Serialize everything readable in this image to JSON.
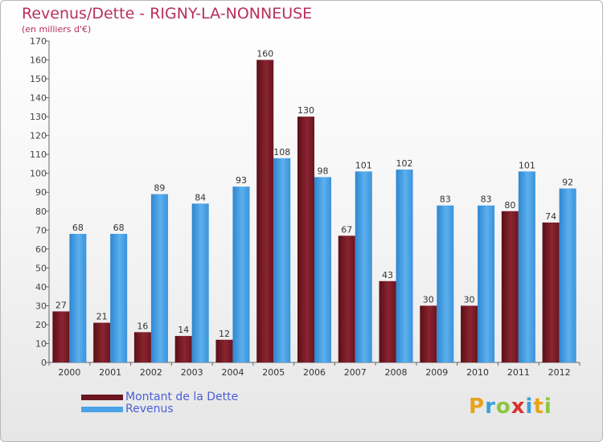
{
  "title": "Revenus/Dette - RIGNY-LA-NONNEUSE",
  "subtitle": "(en milliers d'€)",
  "colors": {
    "title": "#b8305a",
    "dette": "#7a1c24",
    "revenus": "#4aa3e8",
    "legend_text": "#4a5fd6",
    "axis": "#555555"
  },
  "chart_data": {
    "type": "bar",
    "title": "Revenus/Dette - RIGNY-LA-NONNEUSE",
    "subtitle": "(en milliers d'€)",
    "categories": [
      "2000",
      "2001",
      "2002",
      "2003",
      "2004",
      "2005",
      "2006",
      "2007",
      "2008",
      "2009",
      "2010",
      "2011",
      "2012"
    ],
    "series": [
      {
        "name": "Montant de la Dette",
        "values": [
          27,
          21,
          16,
          14,
          12,
          160,
          130,
          67,
          43,
          30,
          30,
          80,
          74
        ]
      },
      {
        "name": "Revenus",
        "values": [
          68,
          68,
          89,
          84,
          93,
          108,
          98,
          101,
          102,
          83,
          83,
          101,
          92
        ]
      }
    ],
    "ylim": [
      0,
      170
    ],
    "yticks": [
      0,
      10,
      20,
      30,
      40,
      50,
      60,
      70,
      80,
      90,
      100,
      110,
      120,
      130,
      140,
      150,
      160,
      170
    ],
    "grid": false,
    "legend_position": "bottom-left"
  },
  "legend": {
    "dette_label": "Montant de la Dette",
    "revenus_label": "Revenus"
  },
  "logo": {
    "letters": [
      "P",
      "r",
      "o",
      "x",
      "i",
      "t",
      "i"
    ],
    "colors": [
      "#e8a21c",
      "#3aa0d8",
      "#8cc63e",
      "#d8322e",
      "#3aa0d8",
      "#e8a21c",
      "#8cc63e"
    ]
  }
}
